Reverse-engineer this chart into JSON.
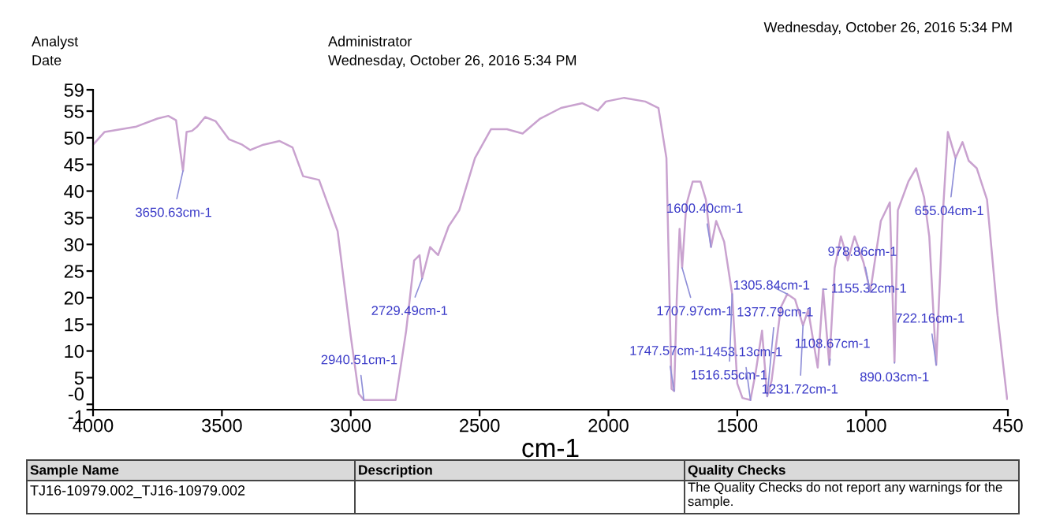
{
  "chart_data": {
    "type": "line",
    "xlabel": "cm-1",
    "x": [
      4000,
      3955,
      3832,
      3750,
      3708,
      3678,
      3651,
      3637,
      3616,
      3596,
      3565,
      3524,
      3472,
      3421,
      3390,
      3339,
      3277,
      3226,
      3185,
      3123,
      3051,
      3000,
      2969,
      2949,
      2826,
      2785,
      2754,
      2733,
      2723,
      2692,
      2661,
      2620,
      2579,
      2518,
      2456,
      2394,
      2333,
      2265,
      2184,
      2102,
      2041,
      2010,
      1939,
      1857,
      1806,
      1775,
      1755,
      1745,
      1735,
      1724,
      1714,
      1698,
      1673,
      1643,
      1622,
      1602,
      1582,
      1551,
      1520,
      1500,
      1480,
      1449,
      1429,
      1404,
      1384,
      1367,
      1331,
      1306,
      1276,
      1245,
      1225,
      1188,
      1167,
      1143,
      1122,
      1098,
      1071,
      1045,
      1010,
      984,
      943,
      908,
      890,
      877,
      836,
      806,
      775,
      755,
      728,
      704,
      683,
      653,
      626,
      602,
      571,
      531,
      490,
      453
    ],
    "series": [
      {
        "color": "#c9a2cf",
        "values": [
          48.7,
          51.1,
          52.1,
          53.6,
          54.1,
          53.3,
          43.8,
          51.1,
          51.3,
          52.1,
          53.9,
          53.1,
          49.7,
          48.7,
          47.7,
          48.7,
          49.4,
          48.2,
          42.8,
          42.1,
          32.5,
          12.8,
          2.0,
          0.8,
          0.8,
          13.8,
          27.0,
          28.0,
          23.6,
          29.5,
          28.0,
          33.4,
          36.4,
          46.2,
          51.6,
          51.6,
          50.8,
          53.6,
          55.6,
          56.5,
          55.1,
          56.8,
          57.5,
          56.8,
          55.6,
          46.2,
          2.9,
          2.5,
          19.7,
          32.9,
          25.6,
          37.4,
          41.8,
          41.8,
          38.4,
          29.5,
          34.4,
          30.5,
          20.7,
          3.9,
          1.2,
          0.8,
          5.9,
          13.8,
          1.5,
          4.4,
          18.2,
          20.7,
          19.7,
          14.8,
          17.7,
          6.9,
          21.6,
          7.4,
          25.6,
          31.5,
          27.0,
          31.5,
          26.6,
          21.1,
          34.4,
          37.9,
          7.9,
          36.4,
          41.8,
          44.3,
          38.8,
          31.5,
          7.4,
          34.4,
          51.1,
          46.2,
          49.2,
          45.7,
          44.3,
          38.4,
          16.7,
          1.0
        ]
      }
    ],
    "xlim": [
      4000,
      450
    ],
    "xticks": [
      4000,
      3500,
      3000,
      2500,
      2000,
      1500,
      1000,
      450
    ],
    "ylim": [
      -1,
      59
    ],
    "yticks": [
      -1,
      {
        "value": 0,
        "label": "-0"
      },
      5,
      10,
      15,
      20,
      25,
      30,
      35,
      40,
      45,
      50,
      55,
      59
    ],
    "grid": false,
    "legend": false,
    "annotations": [
      "Analyst",
      "Administrator",
      "Date",
      "Wednesday, October 26, 2016 5:34 PM",
      "Wednesday, October 26, 2016 5:34 PM",
      "Sample Name",
      "Description",
      "Quality Checks",
      "TJ16-10979.002_TJ16-10979.002",
      "The Quality Checks do not report any warnings for the sample.",
      {
        "text": "3650.63cm-1",
        "x": 3651,
        "y": 43.8
      },
      {
        "text": "2940.51cm-1",
        "x": 2949,
        "y": 0.8
      },
      {
        "text": "2729.49cm-1",
        "x": 2723,
        "y": 23.6
      },
      {
        "text": "1747.57cm-1",
        "x": 1745,
        "y": 2.5
      },
      {
        "text": "1707.97cm-1",
        "x": 1714,
        "y": 25.6
      },
      {
        "text": "1600.40cm-1",
        "x": 1602,
        "y": 29.5
      },
      {
        "text": "1516.55cm-1",
        "x": 1520,
        "y": 20.7
      },
      {
        "text": "1453.13cm-1",
        "x": 1449,
        "y": 0.8
      },
      {
        "text": "1377.79cm-1",
        "x": 1384,
        "y": 1.5
      },
      {
        "text": "1305.84cm-1",
        "x": 1306,
        "y": 20.7
      },
      {
        "text": "1231.72cm-1",
        "x": 1245,
        "y": 14.8
      },
      {
        "text": "1155.32cm-1",
        "x": 1167,
        "y": 21.6
      },
      {
        "text": "1108.67cm-1",
        "x": 1143,
        "y": 7.4
      },
      {
        "text": "978.86cm-1",
        "x": 984,
        "y": 21.1
      },
      {
        "text": "890.03cm-1",
        "x": 890,
        "y": 7.9
      },
      {
        "text": "722.16cm-1",
        "x": 728,
        "y": 7.4
      },
      {
        "text": "655.04cm-1",
        "x": 653,
        "y": 46.2
      }
    ]
  }
}
